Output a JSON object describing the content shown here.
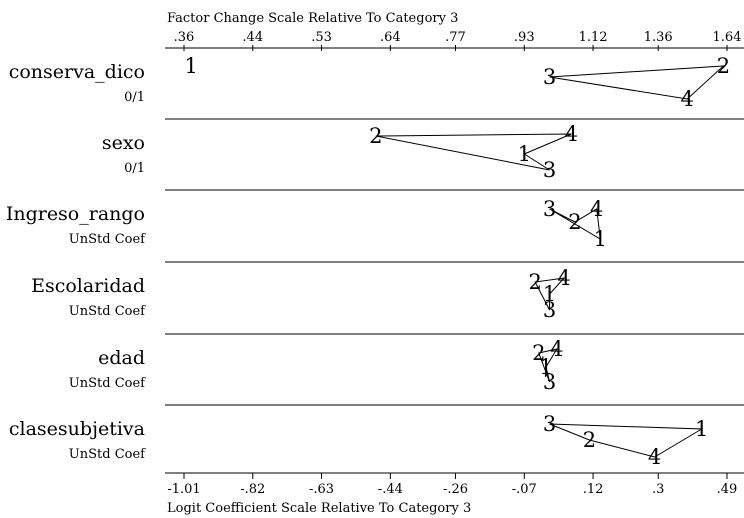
{
  "chart_data": {
    "type": "scatter",
    "title": "",
    "top_axis_label": "Factor Change Scale Relative To Category 3",
    "bottom_axis_label": "Logit Coefficient Scale Relative To Category 3",
    "top_ticks": [
      ".36",
      ".44",
      ".53",
      ".64",
      ".77",
      ".93",
      "1.12",
      "1.36",
      "1.64"
    ],
    "bottom_ticks": [
      "-1.01",
      "-.82",
      "-.63",
      "-.44",
      "-.26",
      "-.07",
      ".12",
      ".3",
      ".49"
    ],
    "bottom_tick_values": [
      -1.01,
      -0.82,
      -0.63,
      -0.44,
      -0.26,
      -0.07,
      0.12,
      0.3,
      0.49
    ],
    "xlim": [
      -1.01,
      0.49
    ],
    "variables": [
      {
        "name": "conserva_dico",
        "sub": "0/1",
        "points": [
          {
            "label": "1",
            "x": -0.99
          },
          {
            "label": "3",
            "x": 0.0
          },
          {
            "label": "4",
            "x": 0.38
          },
          {
            "label": "2",
            "x": 0.48
          }
        ]
      },
      {
        "name": "sexo",
        "sub": "0/1",
        "points": [
          {
            "label": "2",
            "x": -0.48
          },
          {
            "label": "1",
            "x": -0.07
          },
          {
            "label": "3",
            "x": 0.0
          },
          {
            "label": "4",
            "x": 0.06
          }
        ]
      },
      {
        "name": "Ingreso_rango",
        "sub": "UnStd Coef",
        "points": [
          {
            "label": "3",
            "x": 0.0
          },
          {
            "label": "2",
            "x": 0.07
          },
          {
            "label": "4",
            "x": 0.13
          },
          {
            "label": "1",
            "x": 0.14
          }
        ]
      },
      {
        "name": "Escolaridad",
        "sub": "UnStd Coef",
        "points": [
          {
            "label": "2",
            "x": -0.04
          },
          {
            "label": "1",
            "x": 0.0
          },
          {
            "label": "3",
            "x": 0.0
          },
          {
            "label": "4",
            "x": 0.04
          }
        ]
      },
      {
        "name": "edad",
        "sub": "UnStd Coef",
        "points": [
          {
            "label": "2",
            "x": -0.03
          },
          {
            "label": "1",
            "x": -0.01
          },
          {
            "label": "3",
            "x": 0.0
          },
          {
            "label": "4",
            "x": 0.02
          }
        ]
      },
      {
        "name": "clasesubjetiva",
        "sub": "UnStd Coef",
        "points": [
          {
            "label": "3",
            "x": 0.0
          },
          {
            "label": "2",
            "x": 0.11
          },
          {
            "label": "4",
            "x": 0.29
          },
          {
            "label": "1",
            "x": 0.42
          }
        ]
      }
    ]
  }
}
